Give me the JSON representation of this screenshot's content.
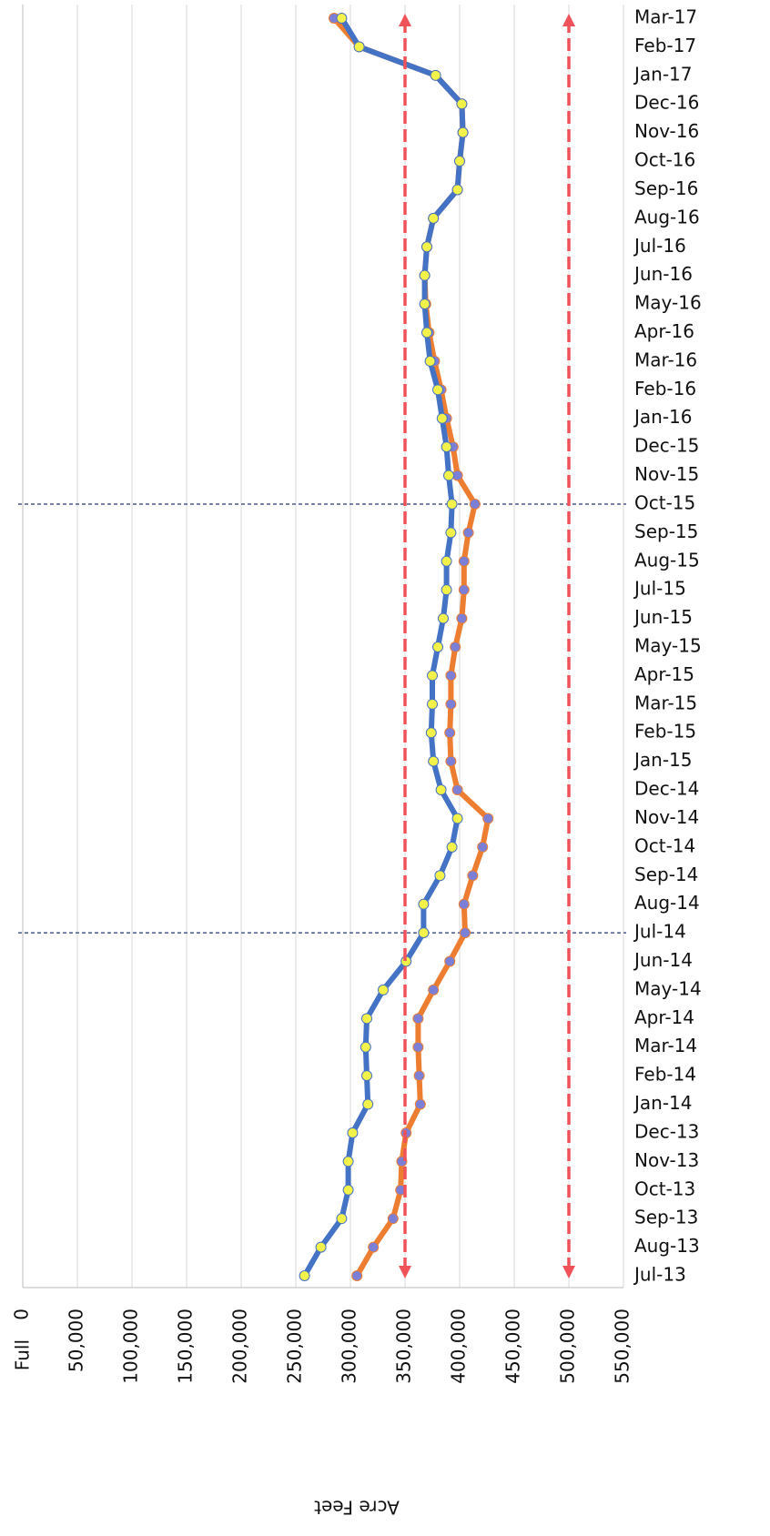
{
  "chart_data": {
    "type": "line",
    "orientation": "vertical-categories",
    "x_label": "Acre Feet",
    "annotations": [
      "Full"
    ],
    "categories": [
      "Jul-13",
      "Aug-13",
      "Sep-13",
      "Oct-13",
      "Nov-13",
      "Dec-13",
      "Jan-14",
      "Feb-14",
      "Mar-14",
      "Apr-14",
      "May-14",
      "Jun-14",
      "Jul-14",
      "Aug-14",
      "Sep-14",
      "Oct-14",
      "Nov-14",
      "Dec-14",
      "Jan-15",
      "Feb-15",
      "Mar-15",
      "Apr-15",
      "May-15",
      "Jun-15",
      "Jul-15",
      "Aug-15",
      "Sep-15",
      "Oct-15",
      "Nov-15",
      "Dec-15",
      "Jan-16",
      "Feb-16",
      "Mar-16",
      "Apr-16",
      "May-16",
      "Jun-16",
      "Jul-16",
      "Aug-16",
      "Sep-16",
      "Oct-16",
      "Nov-16",
      "Dec-16",
      "Jan-17",
      "Feb-17",
      "Mar-17"
    ],
    "series": [
      {
        "color": "#ed7d31",
        "marker_color": "#7b7fd6",
        "values": [
          306000,
          321000,
          339000,
          346000,
          347000,
          351000,
          364000,
          363000,
          362000,
          362000,
          376000,
          391000,
          405000,
          404000,
          412000,
          421000,
          426000,
          398000,
          392000,
          391000,
          392000,
          392000,
          396000,
          402000,
          404000,
          404000,
          408000,
          414000,
          398000,
          394000,
          388000,
          383000,
          377000,
          372000,
          369000,
          368000,
          370000,
          376000,
          398000,
          400000,
          403000,
          402000,
          378000,
          308000,
          285000
        ]
      },
      {
        "color": "#4472c4",
        "marker_color": "#f2f24a",
        "values": [
          258000,
          273000,
          292000,
          298000,
          298000,
          302000,
          316000,
          315000,
          314000,
          315000,
          330000,
          351000,
          367000,
          367000,
          382000,
          393000,
          398000,
          383000,
          376000,
          374000,
          375000,
          375000,
          380000,
          385000,
          388000,
          388000,
          392000,
          393000,
          390000,
          388000,
          384000,
          380000,
          373000,
          370000,
          368000,
          368000,
          370000,
          376000,
          398000,
          400000,
          403000,
          402000,
          378000,
          308000,
          292000
        ]
      }
    ],
    "xlim": [
      0,
      550000
    ],
    "xticks": [
      0,
      {
        "value": 50000,
        "label": "50,000"
      },
      {
        "value": 100000,
        "label": "100,000"
      },
      {
        "value": 150000,
        "label": "150,000"
      },
      {
        "value": 200000,
        "label": "200,000"
      },
      {
        "value": 250000,
        "label": "250,000"
      },
      {
        "value": 300000,
        "label": "300,000"
      },
      {
        "value": 350000,
        "label": "350,000"
      },
      {
        "value": 400000,
        "label": "400,000"
      },
      {
        "value": 450000,
        "label": "450,000"
      },
      {
        "value": 500000,
        "label": "500,000"
      },
      {
        "value": 550000,
        "label": "550,000"
      }
    ],
    "grid": true,
    "reference_lines": [
      {
        "value": 350000,
        "color": "#f0525a"
      },
      {
        "value": 500000,
        "color": "#f0525a"
      }
    ],
    "highlight_category_indices": [
      12,
      27
    ],
    "highlight_color": "#4a5a8c"
  }
}
